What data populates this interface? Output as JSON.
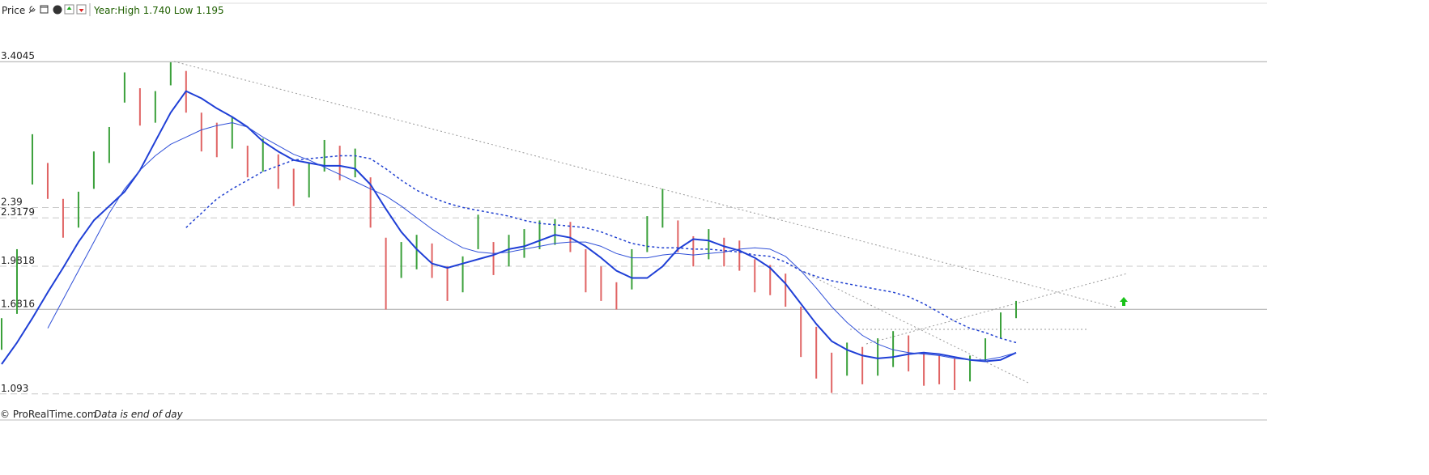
{
  "chart_data": {
    "type": "price-bars",
    "title": "Price",
    "subtitle": "Year:High 1.740 Low 1.195",
    "source": "© ProRealTime.com",
    "note": "Data is end of day",
    "ylim": [
      1.03,
      3.8
    ],
    "yticks": [
      3.4045,
      2.39,
      2.3179,
      1.9818,
      1.6816,
      1.093
    ],
    "ytick_line_styles": [
      "solid",
      "dashed",
      "dashed",
      "dashed",
      "solid",
      "dashed"
    ],
    "up_color": "#3aa03a",
    "down_color": "#e06464",
    "high": [
      1.62,
      2.1,
      2.9,
      2.7,
      2.45,
      2.5,
      2.78,
      2.95,
      3.33,
      3.22,
      3.2,
      3.4,
      3.34,
      3.05,
      2.98,
      3.02,
      2.82,
      2.87,
      2.76,
      2.66,
      2.7,
      2.86,
      2.82,
      2.8,
      2.6,
      2.18,
      2.15,
      2.2,
      2.14,
      1.98,
      2.05,
      2.34,
      2.15,
      2.2,
      2.24,
      2.3,
      2.31,
      2.29,
      2.1,
      1.98,
      1.87,
      2.1,
      2.33,
      2.52,
      2.3,
      2.19,
      2.24,
      2.18,
      2.16,
      2.03,
      1.99,
      1.93,
      1.7,
      1.56,
      1.38,
      1.45,
      1.42,
      1.48,
      1.53,
      1.5,
      1.38,
      1.36,
      1.34,
      1.36,
      1.48,
      1.66,
      1.74
    ],
    "low": [
      1.4,
      1.65,
      2.55,
      2.45,
      2.18,
      2.25,
      2.52,
      2.7,
      3.12,
      2.96,
      2.98,
      3.24,
      3.05,
      2.78,
      2.74,
      2.8,
      2.6,
      2.64,
      2.52,
      2.4,
      2.46,
      2.64,
      2.58,
      2.6,
      2.25,
      1.68,
      1.9,
      1.96,
      1.9,
      1.74,
      1.8,
      2.1,
      1.92,
      1.98,
      2.04,
      2.1,
      2.13,
      2.08,
      1.8,
      1.74,
      1.68,
      1.82,
      2.08,
      2.25,
      2.08,
      1.98,
      2.03,
      1.98,
      1.95,
      1.8,
      1.78,
      1.7,
      1.35,
      1.2,
      1.1,
      1.22,
      1.16,
      1.22,
      1.28,
      1.25,
      1.15,
      1.16,
      1.12,
      1.18,
      1.32,
      1.48,
      1.62
    ],
    "lines": [
      {
        "color": "#1f3fd6",
        "width": 2,
        "dash": "none",
        "values": [
          1.3,
          1.45,
          1.62,
          1.8,
          1.97,
          2.15,
          2.3,
          2.4,
          2.5,
          2.65,
          2.85,
          3.05,
          3.2,
          3.15,
          3.08,
          3.02,
          2.95,
          2.85,
          2.78,
          2.72,
          2.7,
          2.68,
          2.68,
          2.66,
          2.55,
          2.38,
          2.22,
          2.1,
          2.0,
          1.97,
          2.0,
          2.03,
          2.06,
          2.1,
          2.12,
          2.16,
          2.2,
          2.18,
          2.12,
          2.04,
          1.95,
          1.9,
          1.9,
          1.98,
          2.1,
          2.17,
          2.16,
          2.12,
          2.09,
          2.04,
          1.97,
          1.86,
          1.72,
          1.58,
          1.46,
          1.4,
          1.36,
          1.34,
          1.35,
          1.37,
          1.38,
          1.37,
          1.35,
          1.33,
          1.32,
          1.33,
          1.38
        ]
      },
      {
        "color": "#3050d8",
        "width": 1,
        "dash": "none",
        "values": [
          null,
          null,
          null,
          1.55,
          1.75,
          1.95,
          2.15,
          2.35,
          2.52,
          2.65,
          2.75,
          2.83,
          2.88,
          2.93,
          2.96,
          2.98,
          2.95,
          2.88,
          2.82,
          2.76,
          2.72,
          2.67,
          2.62,
          2.57,
          2.52,
          2.47,
          2.4,
          2.32,
          2.24,
          2.17,
          2.11,
          2.08,
          2.07,
          2.08,
          2.1,
          2.12,
          2.14,
          2.15,
          2.15,
          2.12,
          2.07,
          2.04,
          2.04,
          2.06,
          2.07,
          2.06,
          2.07,
          2.08,
          2.1,
          2.11,
          2.1,
          2.05,
          1.95,
          1.83,
          1.7,
          1.59,
          1.5,
          1.44,
          1.4,
          1.38,
          1.37,
          1.36,
          1.34,
          1.33,
          1.33,
          1.35,
          1.38
        ]
      },
      {
        "color": "#2040d0",
        "width": 1.5,
        "dash": "3 3",
        "values": [
          null,
          null,
          null,
          null,
          null,
          null,
          null,
          null,
          null,
          null,
          null,
          null,
          2.25,
          2.35,
          2.45,
          2.52,
          2.58,
          2.64,
          2.68,
          2.72,
          2.73,
          2.74,
          2.75,
          2.75,
          2.73,
          2.66,
          2.58,
          2.51,
          2.46,
          2.42,
          2.39,
          2.37,
          2.35,
          2.33,
          2.3,
          2.28,
          2.27,
          2.26,
          2.25,
          2.22,
          2.18,
          2.14,
          2.12,
          2.11,
          2.11,
          2.1,
          2.1,
          2.09,
          2.08,
          2.06,
          2.05,
          2.01,
          1.95,
          1.91,
          1.88,
          1.86,
          1.84,
          1.82,
          1.8,
          1.77,
          1.72,
          1.66,
          1.6,
          1.55,
          1.52,
          1.48,
          1.45
        ]
      }
    ]
  }
}
